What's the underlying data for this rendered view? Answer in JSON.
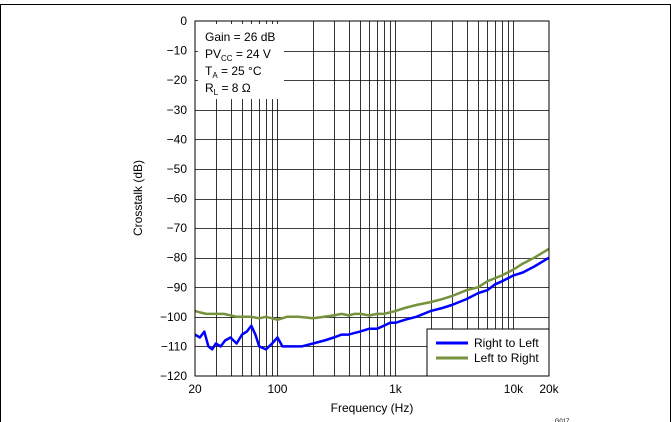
{
  "chart_data": {
    "type": "line",
    "title": "",
    "xlabel": "Frequency (Hz)",
    "ylabel": "Crosstalk (dB)",
    "xscale": "log",
    "xlim": [
      20,
      20000
    ],
    "ylim": [
      -120,
      0
    ],
    "x_ticks": [
      {
        "value": 20,
        "label": "20"
      },
      {
        "value": 100,
        "label": "100"
      },
      {
        "value": 1000,
        "label": "1k"
      },
      {
        "value": 10000,
        "label": "10k"
      },
      {
        "value": 20000,
        "label": "20k"
      }
    ],
    "y_ticks": [
      0,
      -10,
      -20,
      -30,
      -40,
      -50,
      -60,
      -70,
      -80,
      -90,
      -100,
      -110,
      -120
    ],
    "grid": true,
    "annotations": [
      {
        "prefix": "Gain = 26 dB",
        "sub": "",
        "suffix": ""
      },
      {
        "prefix": "PV",
        "sub": "CC",
        "suffix": " = 24 V"
      },
      {
        "prefix": "T",
        "sub": "A",
        "suffix": " = 25 °C"
      },
      {
        "prefix": "R",
        "sub": "L",
        "suffix": " = 8 Ω"
      }
    ],
    "legend_position": "bottom-right",
    "series": [
      {
        "name": "Right to Left",
        "color": "#0000ff",
        "x": [
          20,
          22,
          24,
          26,
          28,
          30,
          33,
          36,
          40,
          45,
          50,
          55,
          60,
          65,
          70,
          80,
          90,
          100,
          110,
          120,
          140,
          160,
          200,
          250,
          300,
          350,
          400,
          500,
          600,
          700,
          800,
          900,
          1000,
          1200,
          1500,
          2000,
          2500,
          3000,
          4000,
          5000,
          6000,
          7000,
          8000,
          10000,
          12000,
          15000,
          20000
        ],
        "y": [
          -106,
          -107,
          -105,
          -110,
          -111,
          -109,
          -110,
          -108,
          -107,
          -109,
          -106,
          -105,
          -103,
          -106,
          -110,
          -111,
          -109,
          -107,
          -110,
          -110,
          -110,
          -110,
          -109,
          -108,
          -107,
          -106,
          -106,
          -105,
          -104,
          -104,
          -103,
          -102,
          -102,
          -101,
          -100,
          -98,
          -97,
          -96,
          -94,
          -92,
          -91,
          -89,
          -88,
          -86,
          -85,
          -83,
          -80
        ]
      },
      {
        "name": "Left to Right",
        "color": "#76923c",
        "x": [
          20,
          22,
          25,
          30,
          35,
          40,
          45,
          50,
          60,
          70,
          80,
          90,
          100,
          120,
          150,
          200,
          250,
          300,
          350,
          400,
          450,
          500,
          600,
          700,
          800,
          900,
          1000,
          1200,
          1500,
          2000,
          2500,
          3000,
          4000,
          5000,
          6000,
          8000,
          10000,
          12000,
          15000,
          20000
        ],
        "y": [
          -98,
          -98.5,
          -99,
          -99,
          -99,
          -99.5,
          -100,
          -100,
          -100,
          -100.5,
          -100,
          -100.5,
          -101,
          -100,
          -100,
          -100.5,
          -100,
          -99.5,
          -99,
          -99.5,
          -99,
          -99,
          -99.5,
          -99,
          -99,
          -98.5,
          -98,
          -97,
          -96,
          -95,
          -94,
          -93,
          -91,
          -90,
          -88,
          -86,
          -84,
          -82,
          -80,
          -77
        ]
      }
    ]
  },
  "figure_id": "G017"
}
